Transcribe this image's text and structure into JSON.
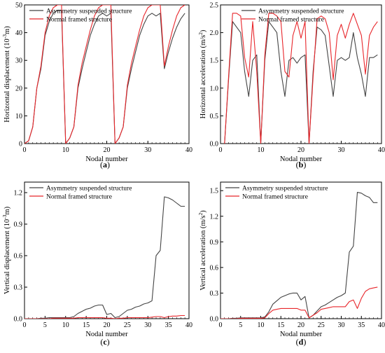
{
  "colors": {
    "asymmetry": "#444444",
    "normal": "#e8262b",
    "axis": "#000000"
  },
  "chart_data": [
    {
      "id": "a",
      "type": "line",
      "caption": "(a)",
      "title": "",
      "xlabel": "Nodal number",
      "ylabel": "Horizontal displacement (10",
      "ylabel_sup": "-3",
      "ylabel_tail": "m)",
      "xlim": [
        0,
        40
      ],
      "ylim": [
        0,
        50
      ],
      "xticks": [
        0,
        10,
        20,
        30,
        40
      ],
      "yticks": [
        0,
        10,
        20,
        30,
        40,
        50
      ],
      "grid": false,
      "legend_position": "top-left",
      "x": [
        0,
        1,
        2,
        3,
        4,
        5,
        6,
        7,
        8,
        9,
        10,
        11,
        12,
        13,
        14,
        15,
        16,
        17,
        18,
        19,
        20,
        21,
        22,
        23,
        24,
        25,
        26,
        27,
        28,
        29,
        30,
        31,
        32,
        33,
        34,
        35,
        36,
        37,
        38,
        39
      ],
      "series": [
        {
          "name": "Asymmetry suspended structure",
          "color_key": "asymmetry",
          "values": [
            0,
            1,
            6,
            20,
            27,
            39,
            44,
            47,
            48,
            48,
            0,
            2,
            6,
            20,
            27,
            33,
            39,
            43,
            46,
            47,
            46,
            47,
            0,
            2,
            6,
            20,
            27,
            33,
            39,
            43,
            46,
            47,
            46,
            47,
            27,
            33,
            38,
            42,
            45,
            47
          ]
        },
        {
          "name": "Normal framed structure",
          "color_key": "normal",
          "values": [
            0,
            1,
            6,
            20,
            28,
            40,
            46,
            49,
            50,
            50,
            0,
            2,
            6,
            21,
            29,
            35,
            41,
            46,
            49,
            50,
            50,
            50,
            0,
            2,
            6,
            21,
            29,
            35,
            41,
            46,
            49,
            50,
            50,
            50,
            28,
            35,
            41,
            46,
            49,
            50
          ]
        }
      ]
    },
    {
      "id": "b",
      "type": "line",
      "caption": "(b)",
      "title": "",
      "xlabel": "Nodal number",
      "ylabel": "Horizontal acceleration (m/s",
      "ylabel_sup": "2",
      "ylabel_tail": ")",
      "xlim": [
        0,
        40
      ],
      "ylim": [
        0,
        2.5
      ],
      "xticks": [
        0,
        10,
        20,
        30,
        40
      ],
      "yticks": [
        0,
        0.5,
        1.0,
        1.5,
        2.0,
        2.5
      ],
      "ytick_labels": [
        "0.0",
        "0.5",
        "1.0",
        "1.5",
        "2.0",
        "2.5"
      ],
      "grid": false,
      "legend_position": "top-center",
      "x": [
        1,
        2,
        3,
        4,
        5,
        6,
        7,
        8,
        9,
        10,
        11,
        12,
        13,
        14,
        15,
        16,
        17,
        18,
        19,
        20,
        21,
        22,
        23,
        24,
        25,
        26,
        27,
        28,
        29,
        30,
        31,
        32,
        33,
        34,
        35,
        36,
        37,
        38,
        39
      ],
      "series": [
        {
          "name": "Asymmetry suspended structure",
          "color_key": "asymmetry",
          "values": [
            0,
            1.15,
            2.2,
            2.1,
            2.0,
            1.3,
            0.85,
            1.5,
            1.6,
            0,
            1.5,
            2.2,
            2.1,
            2.0,
            1.3,
            0.85,
            1.5,
            1.55,
            1.45,
            1.55,
            1.6,
            0,
            1.3,
            2.1,
            2.05,
            1.95,
            1.4,
            0.85,
            1.5,
            1.55,
            1.5,
            1.55,
            2.0,
            1.55,
            1.25,
            0.85,
            1.55,
            1.55,
            1.6
          ]
        },
        {
          "name": "Normal framed structure",
          "color_key": "normal",
          "values": [
            0,
            1.2,
            2.35,
            2.35,
            2.3,
            1.55,
            1.2,
            2.2,
            1.3,
            0,
            1.6,
            2.35,
            2.35,
            2.3,
            2.2,
            1.3,
            1.2,
            1.95,
            2.2,
            1.9,
            2.2,
            0,
            1.2,
            2.25,
            2.3,
            2.25,
            2.0,
            1.15,
            1.95,
            2.15,
            1.9,
            2.15,
            2.35,
            2.15,
            1.95,
            1.25,
            1.95,
            2.1,
            2.2
          ]
        }
      ]
    },
    {
      "id": "c",
      "type": "line",
      "caption": "(c)",
      "title": "",
      "xlabel": "Nodal number",
      "ylabel": "Vertical displacement (10",
      "ylabel_sup": "-3",
      "ylabel_tail": "m)",
      "xlim": [
        0,
        40
      ],
      "ylim": [
        0,
        1.3
      ],
      "xticks": [
        0,
        5,
        10,
        15,
        20,
        25,
        30,
        35,
        40
      ],
      "yticks": [
        0,
        0.3,
        0.6,
        0.9,
        1.2
      ],
      "ytick_labels": [
        "0.0",
        "0.3",
        "0.6",
        "0.9",
        "1.2"
      ],
      "grid": false,
      "legend_position": "top-left",
      "x": [
        0,
        1,
        2,
        3,
        4,
        5,
        6,
        7,
        8,
        9,
        10,
        11,
        12,
        13,
        14,
        15,
        16,
        17,
        18,
        19,
        20,
        21,
        22,
        23,
        24,
        25,
        26,
        27,
        28,
        29,
        30,
        31,
        32,
        33,
        34,
        35,
        36,
        37,
        38,
        39
      ],
      "series": [
        {
          "name": "Asymmetry suspended structure",
          "color_key": "asymmetry",
          "values": [
            0,
            0,
            0,
            0,
            0.005,
            0.005,
            0.01,
            0.01,
            0.01,
            0.01,
            0.01,
            0.01,
            0.02,
            0.05,
            0.07,
            0.09,
            0.1,
            0.12,
            0.13,
            0.13,
            0.04,
            0.05,
            0.01,
            0.02,
            0.05,
            0.08,
            0.09,
            0.11,
            0.12,
            0.14,
            0.15,
            0.17,
            0.6,
            0.65,
            1.16,
            1.15,
            1.13,
            1.1,
            1.07,
            1.07
          ]
        },
        {
          "name": "Normal framed structure",
          "color_key": "normal",
          "values": [
            0,
            0,
            0,
            0,
            0,
            0,
            0,
            0.005,
            0.005,
            0.005,
            0.005,
            0.005,
            0.005,
            0.01,
            0.01,
            0.01,
            0.01,
            0.01,
            0.01,
            0.01,
            0.005,
            0.005,
            0,
            0.005,
            0.005,
            0.01,
            0.01,
            0.01,
            0.01,
            0.01,
            0.01,
            0.015,
            0.02,
            0.02,
            0.01,
            0.02,
            0.025,
            0.025,
            0.03,
            0.03
          ]
        }
      ]
    },
    {
      "id": "d",
      "type": "line",
      "caption": "(d)",
      "title": "",
      "xlabel": "Nodal number",
      "ylabel": "Vertical acceleration (m/s",
      "ylabel_sup": "2",
      "ylabel_tail": ")",
      "xlim": [
        0,
        40
      ],
      "ylim": [
        0,
        1.6
      ],
      "xticks": [
        0,
        5,
        10,
        15,
        20,
        25,
        30,
        35,
        40
      ],
      "yticks": [
        0,
        0.3,
        0.6,
        0.9,
        1.2,
        1.5
      ],
      "ytick_labels": [
        "0.0",
        "0.3",
        "0.6",
        "0.9",
        "1.2",
        "1.5"
      ],
      "grid": false,
      "legend_position": "top-left",
      "x": [
        0,
        1,
        2,
        3,
        4,
        5,
        6,
        7,
        8,
        9,
        10,
        11,
        12,
        13,
        14,
        15,
        16,
        17,
        18,
        19,
        20,
        21,
        22,
        23,
        24,
        25,
        26,
        27,
        28,
        29,
        30,
        31,
        32,
        33,
        34,
        35,
        36,
        37,
        38,
        39
      ],
      "series": [
        {
          "name": "Asymmetry suspended structure",
          "color_key": "asymmetry",
          "values": [
            0,
            0,
            0,
            0.005,
            0.005,
            0.01,
            0.01,
            0.01,
            0.01,
            0.01,
            0.01,
            0.02,
            0.08,
            0.17,
            0.21,
            0.25,
            0.27,
            0.29,
            0.3,
            0.3,
            0.22,
            0.26,
            0.01,
            0.04,
            0.09,
            0.14,
            0.16,
            0.19,
            0.22,
            0.25,
            0.27,
            0.3,
            0.78,
            0.85,
            1.48,
            1.47,
            1.44,
            1.42,
            1.36,
            1.36
          ]
        },
        {
          "name": "Normal framed structure",
          "color_key": "normal",
          "values": [
            0,
            0,
            0,
            0,
            0,
            0.005,
            0.005,
            0.005,
            0.005,
            0.005,
            0.005,
            0.01,
            0.06,
            0.1,
            0.11,
            0.12,
            0.12,
            0.12,
            0.12,
            0.12,
            0.1,
            0.1,
            0.01,
            0.04,
            0.07,
            0.11,
            0.12,
            0.13,
            0.14,
            0.14,
            0.14,
            0.14,
            0.2,
            0.22,
            0.12,
            0.24,
            0.32,
            0.35,
            0.36,
            0.37
          ]
        }
      ]
    }
  ]
}
